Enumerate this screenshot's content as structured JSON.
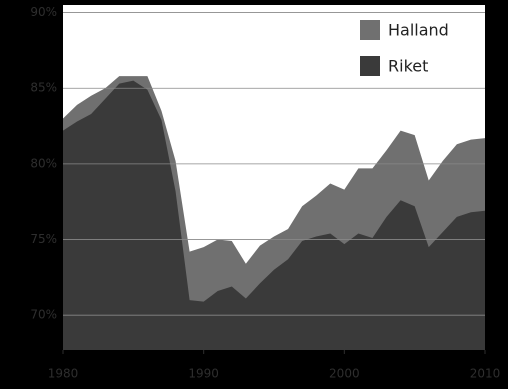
{
  "chart_data": {
    "type": "area",
    "x": [
      1980,
      1981,
      1982,
      1983,
      1984,
      1985,
      1986,
      1987,
      1988,
      1989,
      1990,
      1991,
      1992,
      1993,
      1994,
      1995,
      1996,
      1997,
      1998,
      1999,
      2000,
      2001,
      2002,
      2003,
      2004,
      2005,
      2006,
      2007,
      2008,
      2009,
      2010
    ],
    "series": [
      {
        "name": "Halland",
        "color": "#707070",
        "values": [
          83.0,
          83.9,
          84.5,
          85.0,
          85.8,
          85.8,
          85.8,
          83.5,
          80.2,
          74.2,
          74.5,
          75.0,
          74.9,
          73.4,
          74.6,
          75.2,
          75.7,
          77.2,
          77.9,
          78.7,
          78.3,
          79.7,
          79.7,
          80.9,
          82.2,
          81.9,
          78.9,
          80.2,
          81.3,
          81.6,
          81.7
        ]
      },
      {
        "name": "Riket",
        "color": "#3a3a3a",
        "values": [
          82.2,
          82.8,
          83.3,
          84.3,
          85.3,
          85.5,
          84.9,
          82.9,
          78.2,
          71.0,
          70.9,
          71.6,
          71.9,
          71.1,
          72.1,
          73.0,
          73.7,
          74.9,
          75.2,
          75.4,
          74.7,
          75.4,
          75.1,
          76.5,
          77.6,
          77.2,
          74.5,
          75.5,
          76.5,
          76.8,
          76.9
        ]
      }
    ],
    "xlim": [
      1980,
      2010
    ],
    "xticks": [
      1980,
      1990,
      2000,
      2010
    ],
    "ylim": [
      67.7,
      90.5
    ],
    "yticks": [
      {
        "value": 70,
        "label": "70%"
      },
      {
        "value": 75,
        "label": "75%"
      },
      {
        "value": 80,
        "label": "80%"
      },
      {
        "value": 85,
        "label": "85%"
      },
      {
        "value": 90,
        "label": "90%"
      }
    ],
    "grid": true,
    "legend": "upper right"
  }
}
